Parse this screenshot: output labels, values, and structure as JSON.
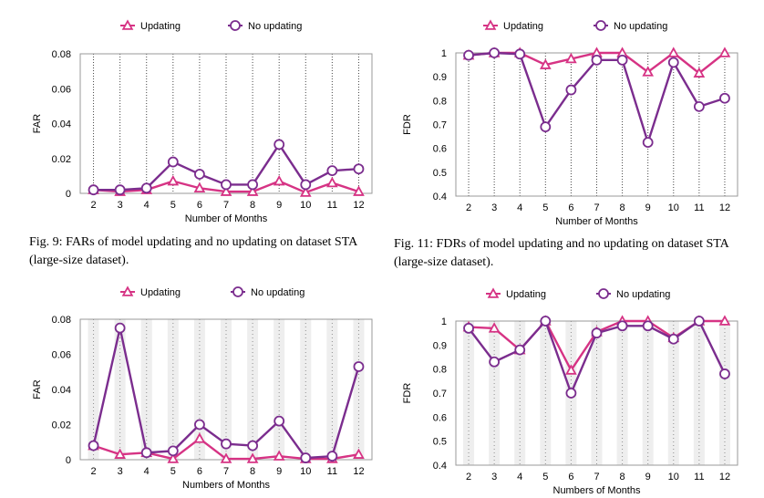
{
  "colors": {
    "updating": "#d63384",
    "no_updating": "#7b2d8e",
    "axis": "#999999",
    "grid": "#333333"
  },
  "chart_data": [
    {
      "type": "line",
      "xlabel": "Number of Months",
      "ylabel": "FAR",
      "x": [
        2,
        3,
        4,
        5,
        6,
        7,
        8,
        9,
        10,
        11,
        12
      ],
      "ylim": [
        0,
        0.08
      ],
      "yticks": [
        "0",
        "0.02",
        "0.04",
        "0.06",
        "0.08"
      ],
      "grid": "vertical dotted",
      "legend": "top",
      "series": [
        {
          "name": "Updating",
          "marker": "triangle",
          "values": [
            0.002,
            0.001,
            0.002,
            0.007,
            0.003,
            0.001,
            0.001,
            0.007,
            0.0005,
            0.006,
            0.001
          ]
        },
        {
          "name": "No updating",
          "marker": "circle",
          "values": [
            0.002,
            0.002,
            0.003,
            0.018,
            0.011,
            0.005,
            0.005,
            0.028,
            0.005,
            0.013,
            0.014
          ]
        }
      ]
    },
    {
      "type": "line",
      "xlabel": "Number of Months",
      "ylabel": "FDR",
      "x": [
        2,
        3,
        4,
        5,
        6,
        7,
        8,
        9,
        10,
        11,
        12
      ],
      "ylim": [
        0.4,
        1
      ],
      "yticks": [
        "0.4",
        "0.5",
        "0.6",
        "0.7",
        "0.8",
        "0.9",
        "1"
      ],
      "grid": "vertical dotted",
      "legend": "top",
      "series": [
        {
          "name": "Updating",
          "marker": "triangle",
          "values": [
            0.99,
            1.0,
            1.0,
            0.95,
            0.975,
            1.0,
            1.0,
            0.92,
            1.0,
            0.915,
            1.0
          ]
        },
        {
          "name": "No updating",
          "marker": "circle",
          "values": [
            0.99,
            1.0,
            0.995,
            0.69,
            0.845,
            0.97,
            0.97,
            0.625,
            0.96,
            0.775,
            0.81
          ]
        }
      ]
    },
    {
      "type": "line",
      "xlabel": "Numbers of Months",
      "ylabel": "FAR",
      "x": [
        2,
        3,
        4,
        5,
        6,
        7,
        8,
        9,
        10,
        11,
        12
      ],
      "ylim": [
        0,
        0.08
      ],
      "yticks": [
        "0",
        "0.02",
        "0.04",
        "0.06",
        "0.08"
      ],
      "grid": "vertical shaded",
      "legend": "top",
      "series": [
        {
          "name": "Updating",
          "marker": "triangle",
          "values": [
            0.008,
            0.003,
            0.004,
            0.0005,
            0.012,
            0.0005,
            0.0005,
            0.002,
            0.0005,
            0.0005,
            0.003
          ]
        },
        {
          "name": "No updating",
          "marker": "circle",
          "values": [
            0.008,
            0.075,
            0.004,
            0.005,
            0.02,
            0.009,
            0.008,
            0.022,
            0.001,
            0.002,
            0.053
          ]
        }
      ]
    },
    {
      "type": "line",
      "xlabel": "Numbers of Months",
      "ylabel": "FDR",
      "x": [
        2,
        3,
        4,
        5,
        6,
        7,
        8,
        9,
        10,
        11,
        12
      ],
      "ylim": [
        0.4,
        1
      ],
      "yticks": [
        "0.4",
        "0.5",
        "0.6",
        "0.7",
        "0.8",
        "0.9",
        "1"
      ],
      "grid": "vertical shaded",
      "legend": "top",
      "series": [
        {
          "name": "Updating",
          "marker": "triangle",
          "values": [
            0.975,
            0.97,
            0.88,
            1.0,
            0.795,
            0.955,
            1.0,
            1.0,
            0.93,
            1.0,
            1.0
          ]
        },
        {
          "name": "No updating",
          "marker": "circle",
          "values": [
            0.97,
            0.83,
            0.88,
            1.0,
            0.7,
            0.95,
            0.98,
            0.98,
            0.925,
            1.0,
            0.78
          ]
        }
      ]
    }
  ],
  "captions": {
    "fig9": "Fig. 9: FARs of model updating and no updating on dataset STA (large-size dataset).",
    "fig11": "Fig. 11: FDRs of model updating and no updating on dataset STA (large-size dataset)."
  }
}
